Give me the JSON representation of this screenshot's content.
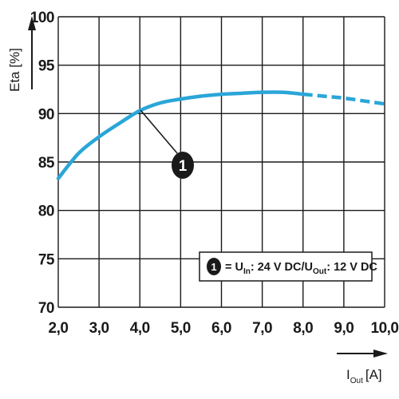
{
  "chart_data": {
    "type": "line",
    "ylabel": "Eta [%]",
    "xlabel_main": "I",
    "xlabel_sub": "Out",
    "xlabel_unit": "[A]",
    "xlim": [
      2,
      10
    ],
    "ylim": [
      70,
      100
    ],
    "x_ticks": [
      "2,0",
      "3,0",
      "4,0",
      "5,0",
      "6,0",
      "7,0",
      "8,0",
      "9,0",
      "10,0"
    ],
    "x_tick_values": [
      2,
      3,
      4,
      5,
      6,
      7,
      8,
      9,
      10
    ],
    "y_ticks": [
      "70",
      "75",
      "80",
      "85",
      "90",
      "95",
      "100"
    ],
    "y_tick_values": [
      70,
      75,
      80,
      85,
      90,
      95,
      100
    ],
    "grid": true,
    "series": [
      {
        "name": "1",
        "color": "#2aa6d8",
        "solid": {
          "x": [
            2.0,
            2.5,
            3.0,
            3.5,
            4.0,
            4.5,
            5.0,
            5.5,
            6.0,
            6.5,
            7.0,
            7.5,
            8.0
          ],
          "y": [
            83.3,
            85.9,
            87.6,
            89.0,
            90.3,
            91.1,
            91.5,
            91.8,
            92.0,
            92.1,
            92.2,
            92.2,
            92.0
          ]
        },
        "dashed": {
          "x": [
            8.0,
            8.5,
            9.0,
            9.5,
            10.0
          ],
          "y": [
            92.0,
            91.8,
            91.6,
            91.3,
            91.0
          ]
        }
      }
    ],
    "annotation": {
      "marker": "1",
      "points_to": [
        4.45,
        90.5
      ]
    },
    "legend": {
      "marker": "1",
      "eq": "=",
      "u1": "U",
      "u1_sub": "In",
      "part1": ": 24 V DC/",
      "u2": "U",
      "u2_sub": "Out",
      "part2": ": 12 V DC",
      "placement": "bottom-right"
    }
  }
}
